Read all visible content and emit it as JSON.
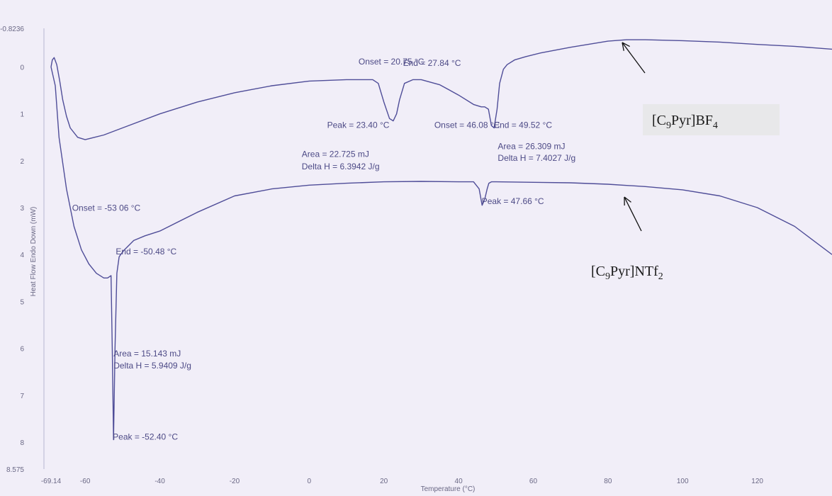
{
  "colors": {
    "background": "#f1eef8",
    "curve": "#4f4d98",
    "label_box": "#e8e8ea",
    "text": "#4d4a86"
  },
  "chart_data": {
    "type": "line",
    "title": "",
    "xlabel": "Temperature (°C)",
    "ylabel": "Heat Flow Endo Down (mW)",
    "xlim": [
      -69.14,
      140
    ],
    "ylim": [
      -0.8236,
      8.575
    ],
    "y_inverted": true,
    "x_ticks": [
      "-69.14",
      "-60",
      "-40",
      "-20",
      "0",
      "20",
      "40",
      "60",
      "80",
      "100",
      "120"
    ],
    "x_tick_values": [
      -69.14,
      -60,
      -40,
      -20,
      0,
      20,
      40,
      60,
      80,
      100,
      120
    ],
    "y_ticks": [
      "-0.8236",
      "0",
      "1",
      "2",
      "3",
      "4",
      "5",
      "6",
      "7",
      "8",
      "8.575"
    ],
    "y_tick_values": [
      -0.8236,
      0,
      1,
      2,
      3,
      4,
      5,
      6,
      7,
      8,
      8.575
    ],
    "series": [
      {
        "name": "[C9Pyr]BF4",
        "label_main": "[C",
        "label_sub1": "9",
        "label_mid": "Pyr]BF",
        "label_sub2": "4",
        "x": [
          -69.14,
          -68.8,
          -68.3,
          -67.6,
          -66.8,
          -66.0,
          -65.0,
          -64.0,
          -62.0,
          -60.0,
          -55.0,
          -50.0,
          -40.0,
          -30.0,
          -20.0,
          -10.0,
          0.0,
          10.0,
          17.0,
          18.5,
          20.0,
          21.5,
          22.5,
          23.4,
          24.2,
          25.5,
          27.8,
          30.0,
          35.0,
          40.0,
          44.0,
          46.08,
          47.0,
          48.0,
          48.8,
          49.52,
          50.3,
          51.0,
          52.0,
          53.0,
          55.0,
          58.0,
          62.0,
          70.0,
          80.0,
          85.0,
          90.0,
          100.0,
          110.0,
          120.0,
          130.0,
          140.0
        ],
        "y": [
          0.0,
          -0.15,
          -0.2,
          -0.05,
          0.3,
          0.7,
          1.05,
          1.3,
          1.5,
          1.55,
          1.45,
          1.3,
          1.0,
          0.75,
          0.55,
          0.4,
          0.3,
          0.27,
          0.27,
          0.35,
          0.75,
          1.1,
          1.15,
          1.0,
          0.7,
          0.35,
          0.27,
          0.27,
          0.38,
          0.6,
          0.8,
          0.85,
          0.85,
          0.9,
          1.25,
          1.3,
          0.9,
          0.35,
          0.05,
          -0.05,
          -0.15,
          -0.22,
          -0.3,
          -0.42,
          -0.55,
          -0.58,
          -0.58,
          -0.56,
          -0.53,
          -0.48,
          -0.44,
          -0.38
        ]
      },
      {
        "name": "[C9Pyr]NTf2",
        "label_main": "[C",
        "label_sub1": "9",
        "label_mid": "Pyr]NTf",
        "label_sub2": "2",
        "x": [
          -69.14,
          -68.0,
          -67.0,
          -65.0,
          -63.0,
          -61.0,
          -59.0,
          -57.0,
          -55.0,
          -54.0,
          -53.06,
          -52.7,
          -52.4,
          -52.0,
          -51.5,
          -50.9,
          -50.48,
          -49.5,
          -47.0,
          -44.0,
          -40.0,
          -30.0,
          -20.0,
          -10.0,
          0.0,
          10.0,
          20.0,
          30.0,
          40.0,
          44.0,
          45.5,
          46.3,
          47.0,
          47.66,
          48.1,
          48.8,
          50.0,
          60.0,
          70.0,
          80.0,
          90.0,
          100.0,
          110.0,
          120.0,
          130.0,
          140.0
        ],
        "y": [
          0.0,
          0.4,
          1.5,
          2.6,
          3.4,
          3.9,
          4.2,
          4.4,
          4.5,
          4.5,
          4.45,
          6.2,
          7.95,
          6.0,
          4.4,
          4.05,
          4.0,
          3.9,
          3.7,
          3.6,
          3.5,
          3.1,
          2.75,
          2.6,
          2.52,
          2.48,
          2.45,
          2.44,
          2.45,
          2.45,
          2.6,
          2.95,
          2.82,
          2.6,
          2.48,
          2.45,
          2.45,
          2.46,
          2.47,
          2.5,
          2.55,
          2.62,
          2.75,
          3.0,
          3.4,
          4.0
        ]
      }
    ],
    "annotations": [
      {
        "text": "Onset = 20.75 °C",
        "x": 13.2,
        "y": -0.05
      },
      {
        "text": "End = 27.84 °C",
        "x": 25.1,
        "y": -0.02
      },
      {
        "text": "Peak = 23.40 °C",
        "x": 4.8,
        "y": 1.3
      },
      {
        "text": "Onset = 46.08 °C",
        "x": 33.5,
        "y": 1.3
      },
      {
        "text": "End = 49.52 °C",
        "x": 49.5,
        "y": 1.3
      },
      {
        "text": "Area = 22.725 mJ",
        "x": -2.0,
        "y": 1.92
      },
      {
        "text": "Delta H = 6.3942 J/g",
        "x": -2.0,
        "y": 2.18
      },
      {
        "text": "Area = 26.309 mJ",
        "x": 50.5,
        "y": 1.75
      },
      {
        "text": "Delta H = 7.4027 J/g",
        "x": 50.5,
        "y": 2.0
      },
      {
        "text": "Peak = 47.66 °C",
        "x": 46.2,
        "y": 2.92
      },
      {
        "text": "Onset = -53 06 °C",
        "x": -63.5,
        "y": 3.07
      },
      {
        "text": "End = -50.48 °C",
        "x": -51.8,
        "y": 4.0
      },
      {
        "text": "Area = 15.143 mJ",
        "x": -52.4,
        "y": 6.17
      },
      {
        "text": "Delta H = 5.9409 J/g",
        "x": -52.4,
        "y": 6.43
      },
      {
        "text": "Peak = -52.40 °C",
        "x": -52.6,
        "y": 7.95
      }
    ]
  }
}
